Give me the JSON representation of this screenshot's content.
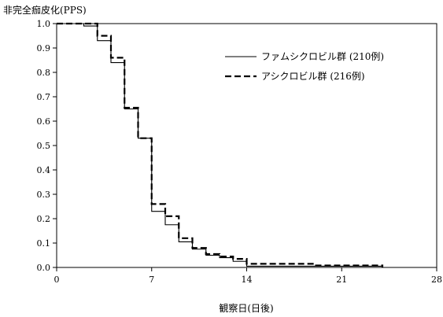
{
  "chart_data": {
    "type": "line",
    "step": true,
    "ylabel": "非完全痂皮化(PPS)",
    "xlabel": "観察日(日後)",
    "xlim": [
      0,
      28
    ],
    "ylim": [
      0.0,
      1.0
    ],
    "x_ticks": [
      0,
      7,
      14,
      21,
      28
    ],
    "y_ticks": [
      0.0,
      0.1,
      0.2,
      0.3,
      0.4,
      0.5,
      0.6,
      0.7,
      0.8,
      0.9,
      1.0
    ],
    "y_tick_labels": [
      "0.0",
      "0.1",
      "0.2",
      "0.3",
      "0.4",
      "0.5",
      "0.6",
      "0.7",
      "0.8",
      "0.9",
      "1.0"
    ],
    "grid": false,
    "legend_position": "top-right",
    "series": [
      {
        "name": "ファムシクロビル群 (210例)",
        "line_style": "solid",
        "x": [
          0,
          2,
          3,
          4,
          5,
          6,
          7,
          8,
          9,
          10,
          11,
          12,
          13,
          14,
          24
        ],
        "y": [
          1.0,
          0.99,
          0.93,
          0.84,
          0.65,
          0.53,
          0.23,
          0.175,
          0.105,
          0.075,
          0.05,
          0.04,
          0.025,
          0.005,
          0.005
        ]
      },
      {
        "name": "アシクロビル群 (216例)",
        "line_style": "dashed",
        "x": [
          0,
          3,
          4,
          5,
          6,
          7,
          8,
          9,
          10,
          11,
          12,
          13,
          14,
          19,
          24
        ],
        "y": [
          1.0,
          0.95,
          0.86,
          0.655,
          0.53,
          0.26,
          0.21,
          0.12,
          0.08,
          0.055,
          0.045,
          0.035,
          0.015,
          0.008,
          0.0
        ]
      }
    ]
  }
}
